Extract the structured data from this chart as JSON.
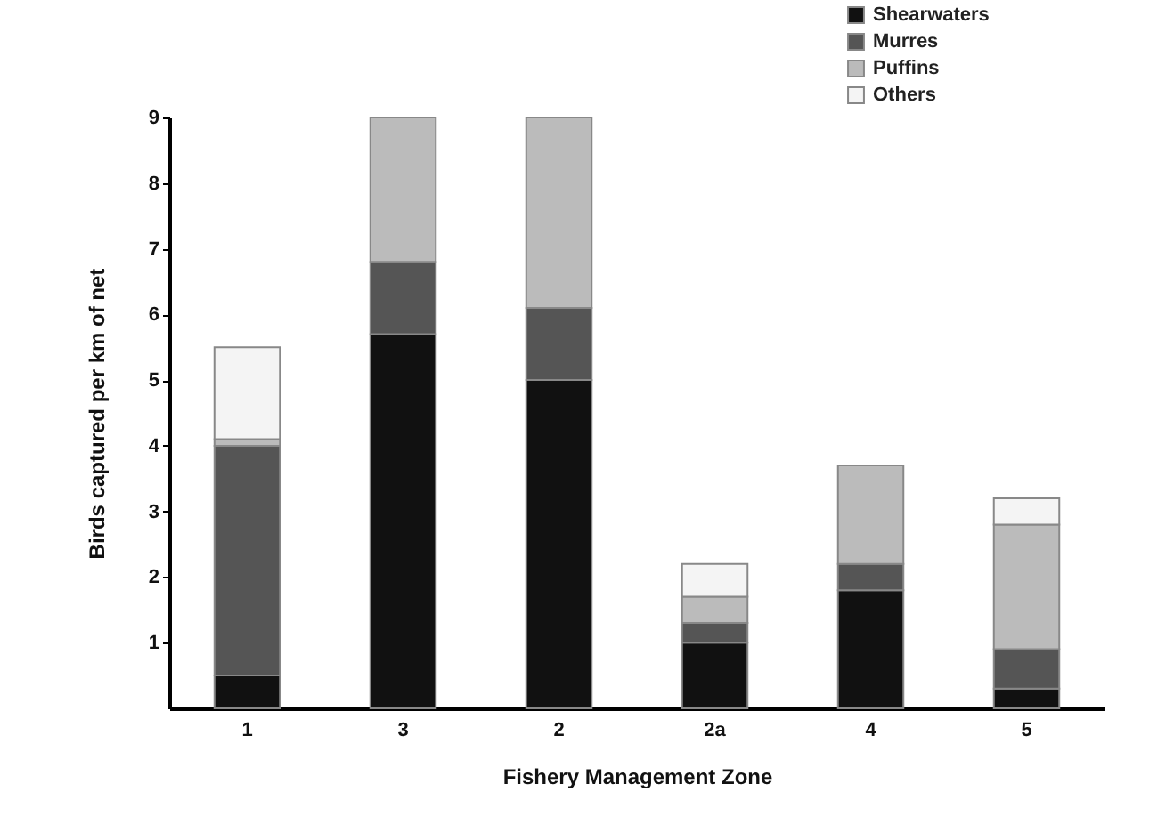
{
  "chart_data": {
    "type": "bar",
    "stacked": true,
    "xlabel": "Fishery Management Zone",
    "ylabel": "Birds captured per km of net",
    "categories": [
      "1",
      "3",
      "2",
      "2a",
      "4",
      "5"
    ],
    "series": [
      {
        "name": "Shearwaters",
        "color": "#111111",
        "values": [
          0.5,
          5.7,
          5.0,
          1.0,
          1.8,
          0.3
        ]
      },
      {
        "name": "Murres",
        "color": "#555555",
        "values": [
          3.5,
          1.1,
          1.1,
          0.3,
          0.4,
          0.6
        ]
      },
      {
        "name": "Puffins",
        "color": "#bbbbbb",
        "values": [
          0.1,
          2.2,
          2.9,
          0.4,
          1.5,
          1.9
        ]
      },
      {
        "name": "Others",
        "color": "#f4f4f4",
        "values": [
          1.4,
          null,
          null,
          0.5,
          null,
          0.4
        ]
      }
    ],
    "ylim": [
      0,
      9
    ],
    "yticks": [
      1,
      2,
      3,
      4,
      5,
      6,
      7,
      8,
      9
    ],
    "legend": "top right"
  }
}
